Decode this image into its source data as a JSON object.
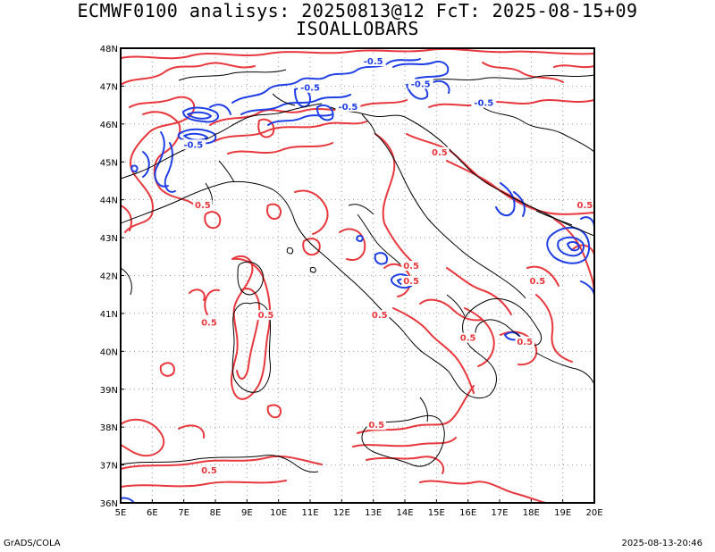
{
  "title": {
    "line1": "ECMWF0100 analisys: 20250813@12 FcT: 2025-08-15+09",
    "line2": "ISOALLOBARS"
  },
  "map": {
    "lon_range": [
      5,
      20
    ],
    "lat_range": [
      36,
      48
    ],
    "lon_ticks": [
      "5E",
      "6E",
      "7E",
      "8E",
      "9E",
      "10E",
      "11E",
      "12E",
      "13E",
      "14E",
      "15E",
      "16E",
      "17E",
      "18E",
      "19E",
      "20E"
    ],
    "lat_ticks": [
      "36N",
      "37N",
      "38N",
      "39N",
      "40N",
      "41N",
      "42N",
      "43N",
      "44N",
      "45N",
      "46N",
      "47N",
      "48N"
    ],
    "grid": "dotted",
    "colors": {
      "positive": "#e8383d",
      "negative": "#1f3fe6",
      "coast": "#000000",
      "grid": "#999999"
    },
    "contour_labels": [
      {
        "text": "0.5",
        "lon": 7.6,
        "lat": 43.8,
        "sign": "positive"
      },
      {
        "text": "0.5",
        "lon": 9.6,
        "lat": 40.9,
        "sign": "positive"
      },
      {
        "text": "0.5",
        "lon": 7.8,
        "lat": 40.7,
        "sign": "positive"
      },
      {
        "text": "0.5",
        "lon": 14.2,
        "lat": 41.8,
        "sign": "positive"
      },
      {
        "text": "0.5",
        "lon": 13.2,
        "lat": 40.9,
        "sign": "positive"
      },
      {
        "text": "0.5",
        "lon": 15.1,
        "lat": 45.2,
        "sign": "positive"
      },
      {
        "text": "0.5",
        "lon": 18.2,
        "lat": 41.8,
        "sign": "positive"
      },
      {
        "text": "0.5",
        "lon": 16.0,
        "lat": 40.3,
        "sign": "positive"
      },
      {
        "text": "0.5",
        "lon": 17.8,
        "lat": 40.2,
        "sign": "positive"
      },
      {
        "text": "0.5",
        "lon": 13.1,
        "lat": 38.0,
        "sign": "positive"
      },
      {
        "text": "0.5",
        "lon": 7.8,
        "lat": 36.8,
        "sign": "positive"
      },
      {
        "text": "0.5",
        "lon": 19.7,
        "lat": 43.8,
        "sign": "positive"
      },
      {
        "text": "0.5",
        "lon": 14.2,
        "lat": 42.2,
        "sign": "positive"
      },
      {
        "text": "-0.5",
        "lon": 11.0,
        "lat": 46.9,
        "sign": "negative"
      },
      {
        "text": "-0.5",
        "lon": 12.2,
        "lat": 46.4,
        "sign": "negative"
      },
      {
        "text": "-0.5",
        "lon": 14.5,
        "lat": 47.0,
        "sign": "negative"
      },
      {
        "text": "-0.5",
        "lon": 7.3,
        "lat": 45.4,
        "sign": "negative"
      },
      {
        "text": "-0.5",
        "lon": 16.5,
        "lat": 46.5,
        "sign": "negative"
      },
      {
        "text": "-0.5",
        "lon": 13.0,
        "lat": 47.6,
        "sign": "negative"
      }
    ]
  },
  "footer": {
    "left": "GrADS/COLA",
    "right": "2025-08-13-20:46"
  }
}
